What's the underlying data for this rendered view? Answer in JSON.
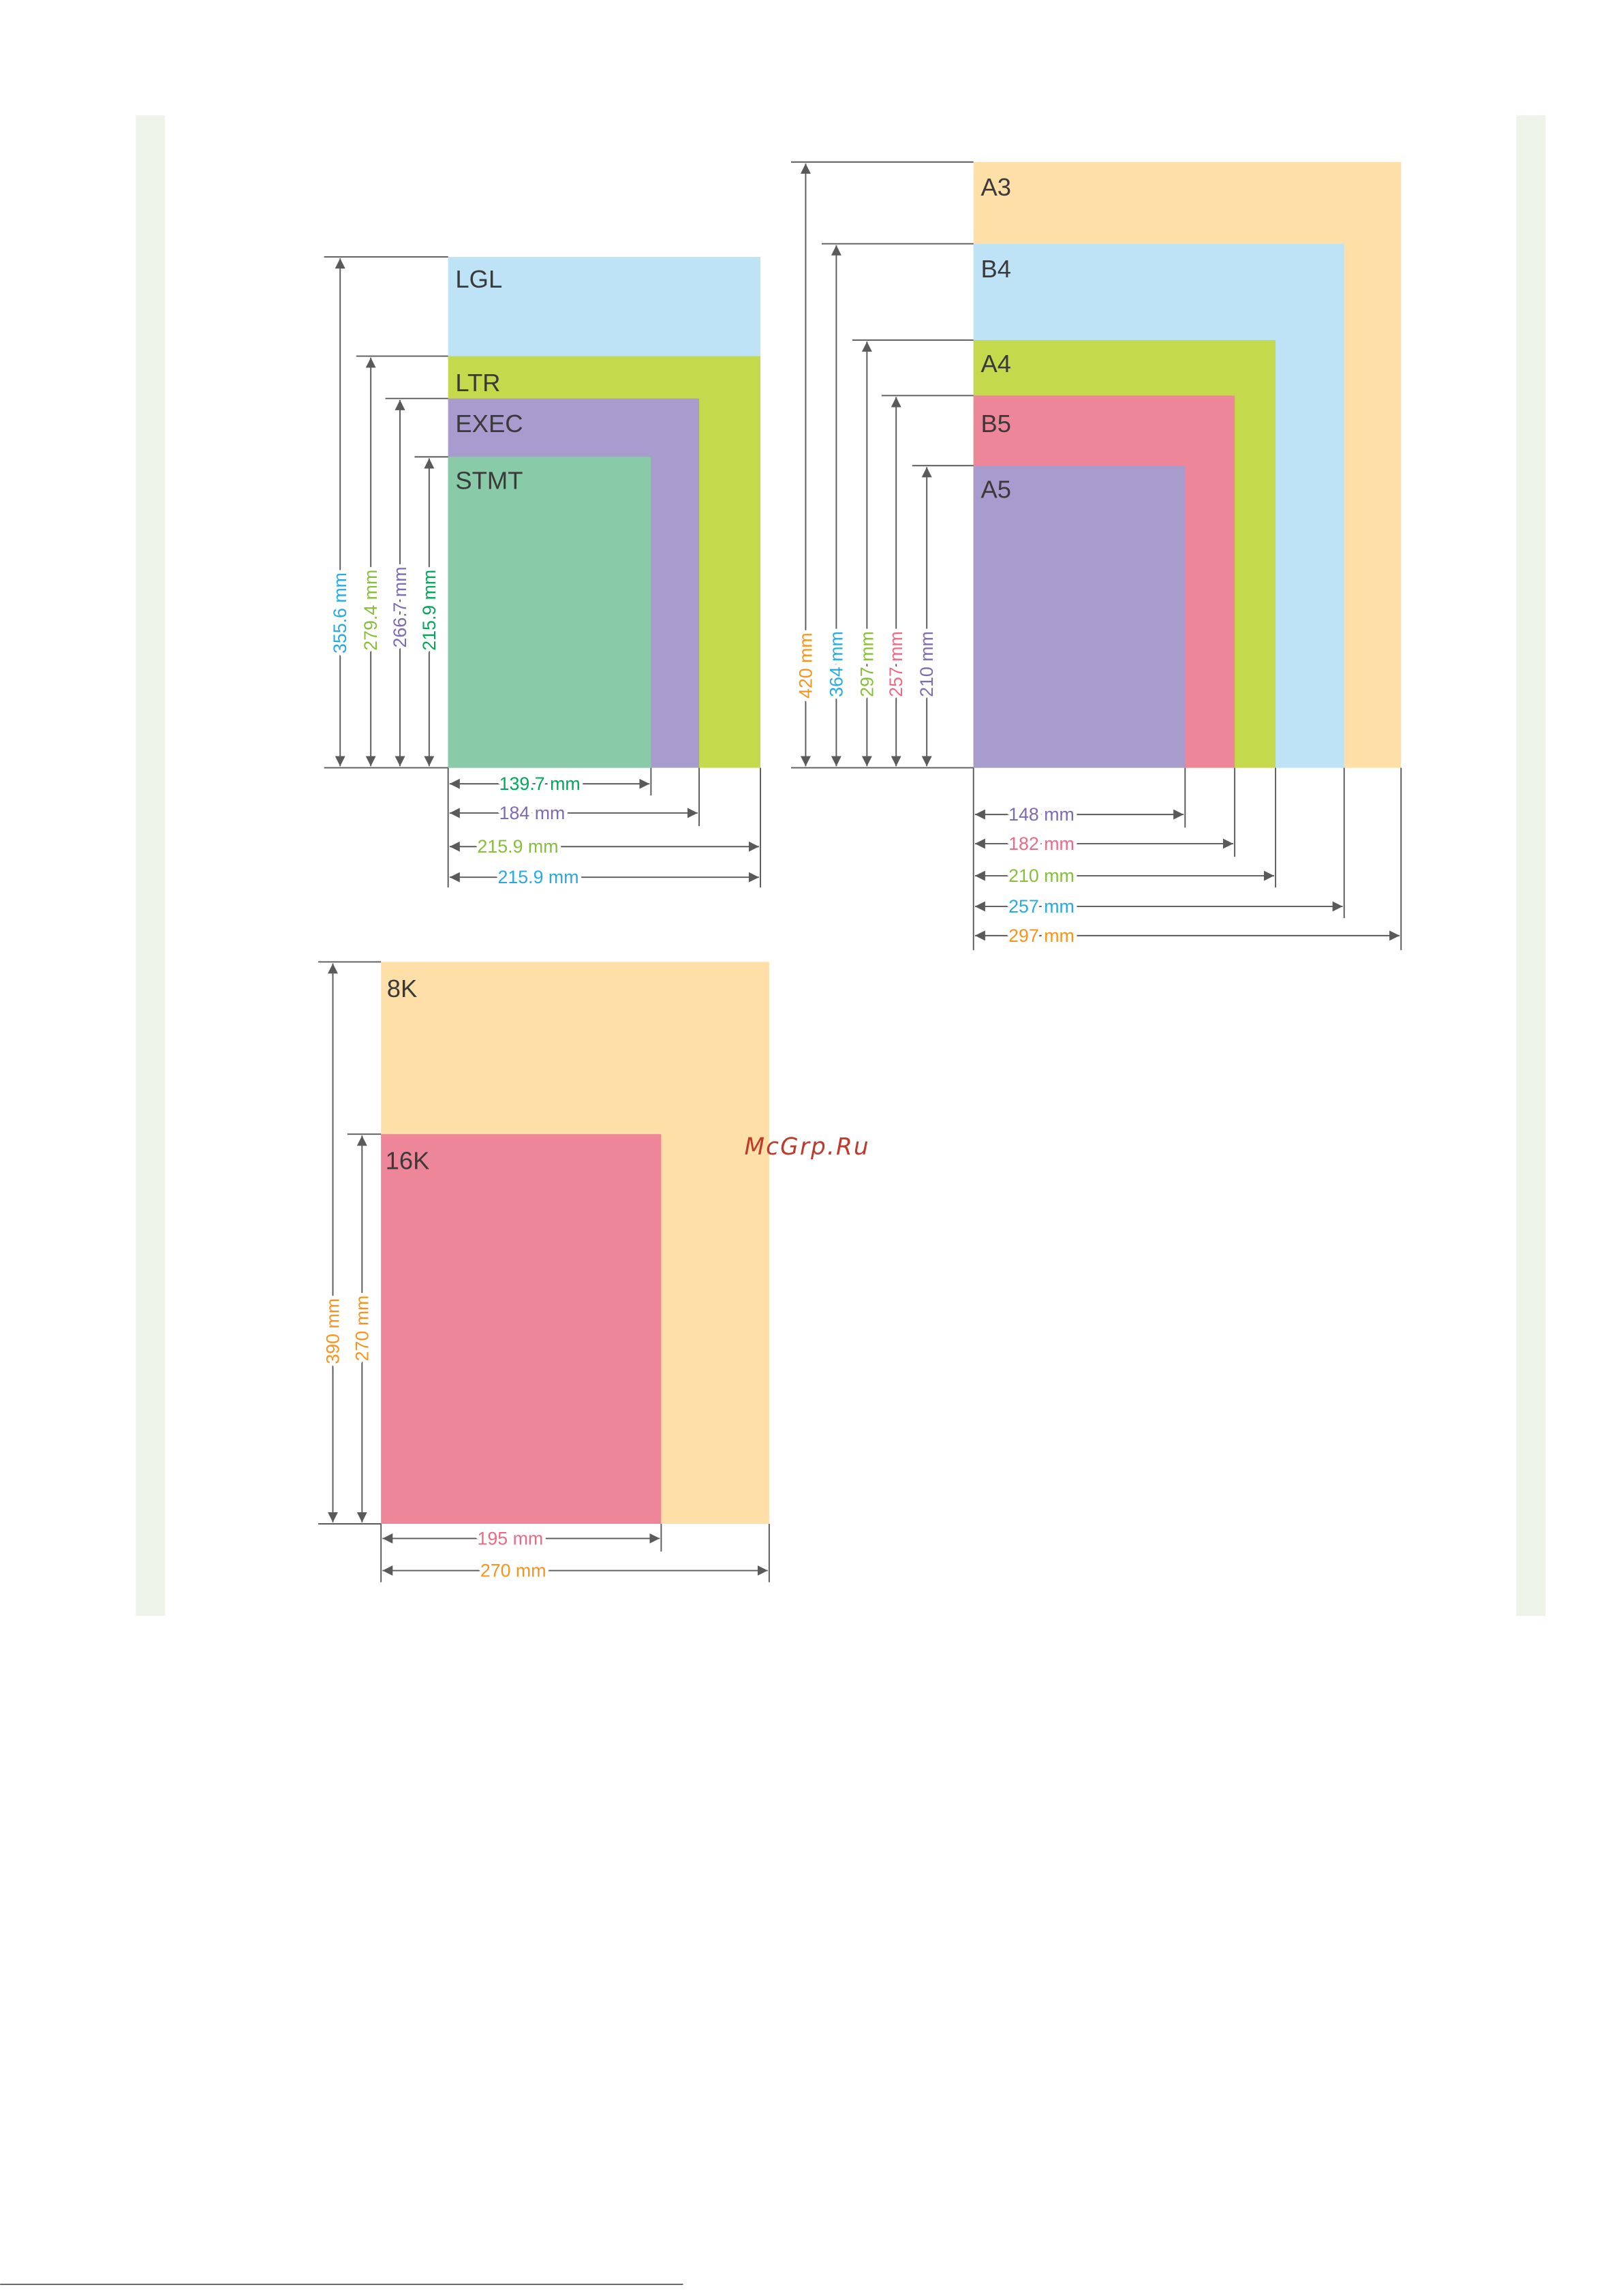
{
  "watermark": "McGrp.Ru",
  "diagrams": [
    {
      "papers": [
        {
          "label": "LGL",
          "height": "355.6 mm",
          "width": "215.9 mm",
          "fill": "#bee3f7"
        },
        {
          "label": "LTR",
          "height": "279.4 mm",
          "width": "215.9 mm",
          "fill": "#c4d94c"
        },
        {
          "label": "EXEC",
          "height": "266.7 mm",
          "width": "184 mm",
          "fill": "#a89bcd"
        },
        {
          "label": "STMT",
          "height": "215.9 mm",
          "width": "139.7 mm",
          "fill": "#89caa9"
        }
      ]
    },
    {
      "papers": [
        {
          "label": "A3",
          "height": "420 mm",
          "width": "297 mm",
          "fill": "#fddfa7"
        },
        {
          "label": "B4",
          "height": "364 mm",
          "width": "257 mm",
          "fill": "#bee3f7"
        },
        {
          "label": "A4",
          "height": "297 mm",
          "width": "210 mm",
          "fill": "#c4d94c"
        },
        {
          "label": "B5",
          "height": "257 mm",
          "width": "182 mm",
          "fill": "#ee8699"
        },
        {
          "label": "A5",
          "height": "210 mm",
          "width": "148 mm",
          "fill": "#a89bcd"
        }
      ]
    },
    {
      "papers": [
        {
          "label": "8K",
          "height": "390 mm",
          "width": "270 mm",
          "fill": "#fddfa7"
        },
        {
          "label": "16K",
          "height": "270 mm",
          "width": "195 mm",
          "fill": "#ee8699"
        }
      ]
    }
  ]
}
